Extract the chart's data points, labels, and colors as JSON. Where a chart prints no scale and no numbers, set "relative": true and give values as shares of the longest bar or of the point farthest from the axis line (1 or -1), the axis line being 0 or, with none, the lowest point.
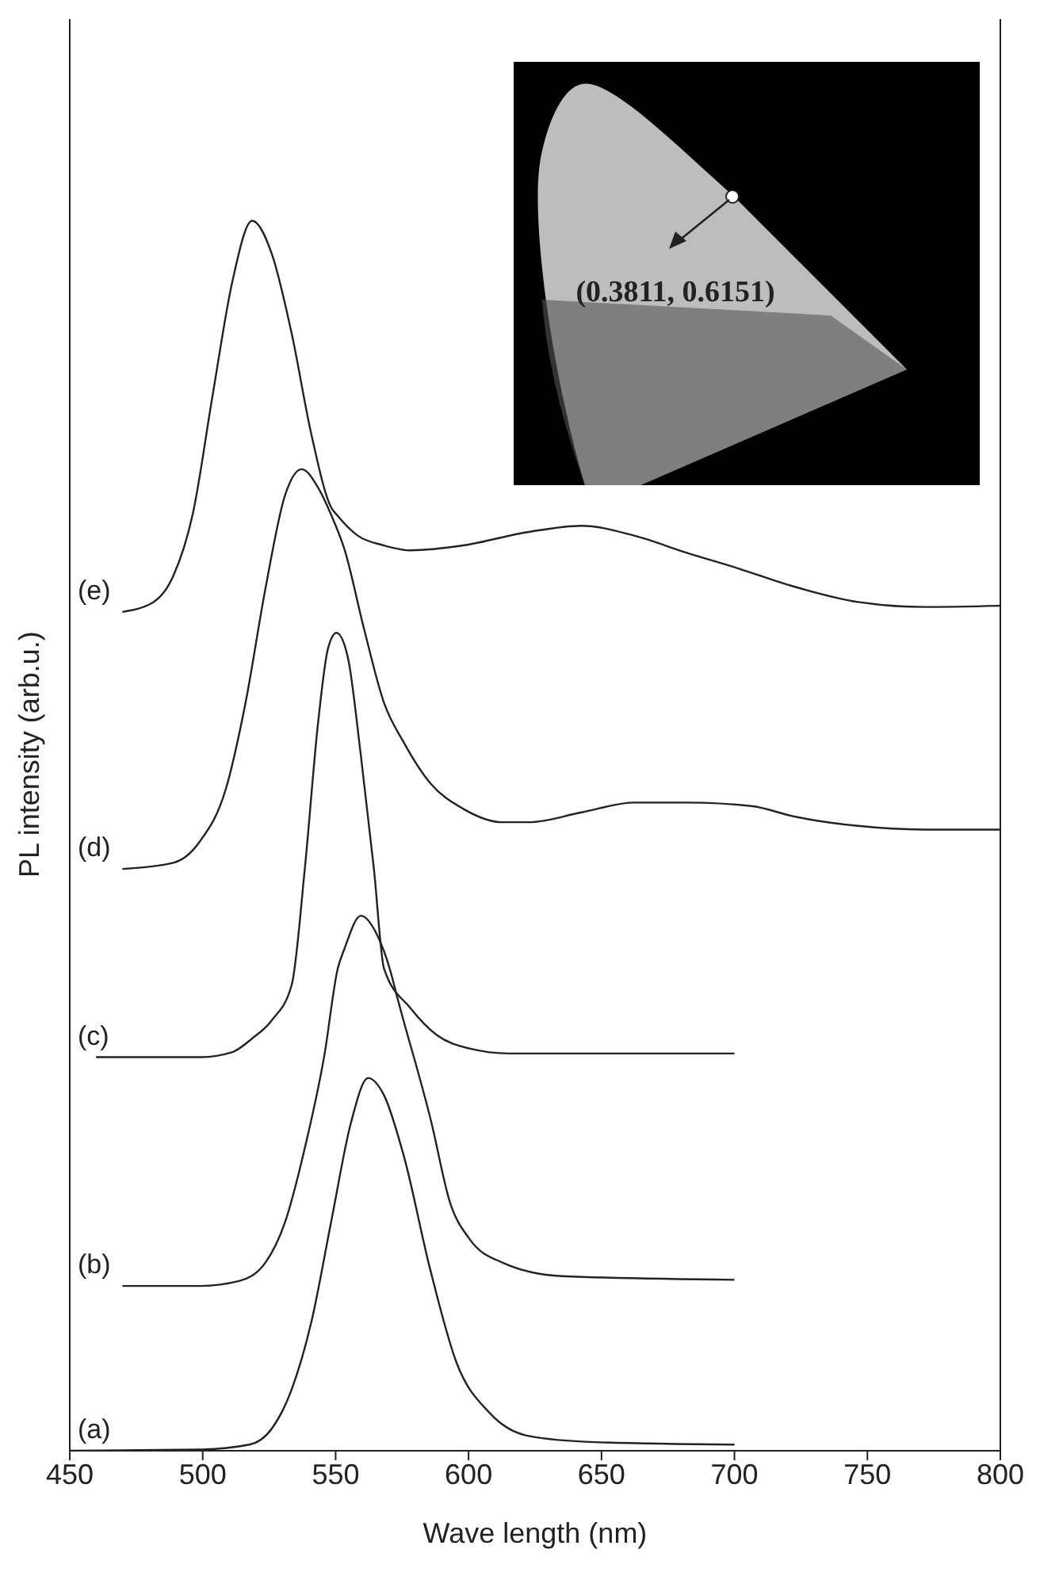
{
  "chart_data": {
    "type": "line",
    "relative": true,
    "xlabel": "Wave length (nm)",
    "ylabel": "PL intensity (arb.u.)",
    "xlim": [
      450,
      800
    ],
    "xticks": [
      450,
      500,
      550,
      600,
      650,
      700,
      750,
      800
    ],
    "marker": "none",
    "line_style": "solid",
    "annotations": [
      "(0.3811, 0.6151)"
    ],
    "series": [
      {
        "name": "(a)",
        "color": "#222222",
        "x": [
          450,
          498.8,
          517.6,
          526,
          533.5,
          540.9,
          548.3,
          555.8,
          562.2,
          568.2,
          575.6,
          585.5,
          595.4,
          607.8,
          622.6,
          647.4,
          700
        ],
        "values": [
          0,
          0.001,
          0.005,
          0.018,
          0.05,
          0.105,
          0.186,
          0.267,
          0.303,
          0.289,
          0.24,
          0.148,
          0.072,
          0.031,
          0.012,
          0.007,
          0.005
        ]
      },
      {
        "name": "(b)",
        "color": "#222222",
        "x": [
          469.8,
          498.8,
          513.7,
          523.6,
          531,
          538.4,
          545.8,
          550.8,
          553.3,
          559.5,
          565.7,
          570.6,
          573,
          586,
          593,
          600.4,
          612.7,
          635,
          700
        ],
        "values": [
          0.134,
          0.134,
          0.138,
          0.153,
          0.186,
          0.246,
          0.322,
          0.392,
          0.408,
          0.435,
          0.419,
          0.39,
          0.37,
          0.267,
          0.202,
          0.172,
          0.153,
          0.142,
          0.139
        ]
      },
      {
        "name": "(c)",
        "color": "#222222",
        "x": [
          459.9,
          498.8,
          511,
          518.5,
          526,
          533.5,
          538.4,
          543.4,
          547.1,
          550.3,
          554.5,
          559.5,
          564.4,
          568.2,
          578.1,
          588,
          600.4,
          615.2,
          700
        ],
        "values": [
          0.32,
          0.32,
          0.324,
          0.335,
          0.35,
          0.379,
          0.473,
          0.592,
          0.652,
          0.665,
          0.646,
          0.565,
          0.473,
          0.392,
          0.36,
          0.338,
          0.327,
          0.323,
          0.323
        ]
      },
      {
        "name": "(d)",
        "color": "#222222",
        "x": [
          469.8,
          488.9,
          498.8,
          508.7,
          516.1,
          523.6,
          531,
          537.2,
          543.4,
          548.3,
          553.3,
          560.7,
          568.2,
          575.6,
          585.5,
          597.9,
          612.7,
          622.6,
          642.5,
          662.3,
          682.1,
          706.9,
          721.7,
          746.5,
          771.3,
          800
        ],
        "values": [
          0.473,
          0.478,
          0.495,
          0.538,
          0.608,
          0.701,
          0.777,
          0.798,
          0.783,
          0.761,
          0.733,
          0.668,
          0.608,
          0.576,
          0.543,
          0.522,
          0.511,
          0.511,
          0.519,
          0.527,
          0.527,
          0.524,
          0.516,
          0.508,
          0.505,
          0.505
        ]
      },
      {
        "name": "(e)",
        "color": "#222222",
        "x": [
          469.8,
          481.5,
          488.9,
          496.3,
          503.8,
          511.2,
          518.6,
          526,
          533.5,
          540.9,
          548.3,
          550.8,
          558.3,
          568.2,
          578.1,
          597.9,
          622.6,
          642.5,
          662.3,
          682.1,
          701.9,
          721.7,
          746.5,
          771.3,
          800
        ],
        "values": [
          0.682,
          0.69,
          0.711,
          0.762,
          0.859,
          0.951,
          1.0,
          0.973,
          0.908,
          0.826,
          0.767,
          0.76,
          0.744,
          0.736,
          0.732,
          0.736,
          0.747,
          0.752,
          0.744,
          0.73,
          0.717,
          0.703,
          0.69,
          0.686,
          0.687
        ]
      }
    ]
  }
}
